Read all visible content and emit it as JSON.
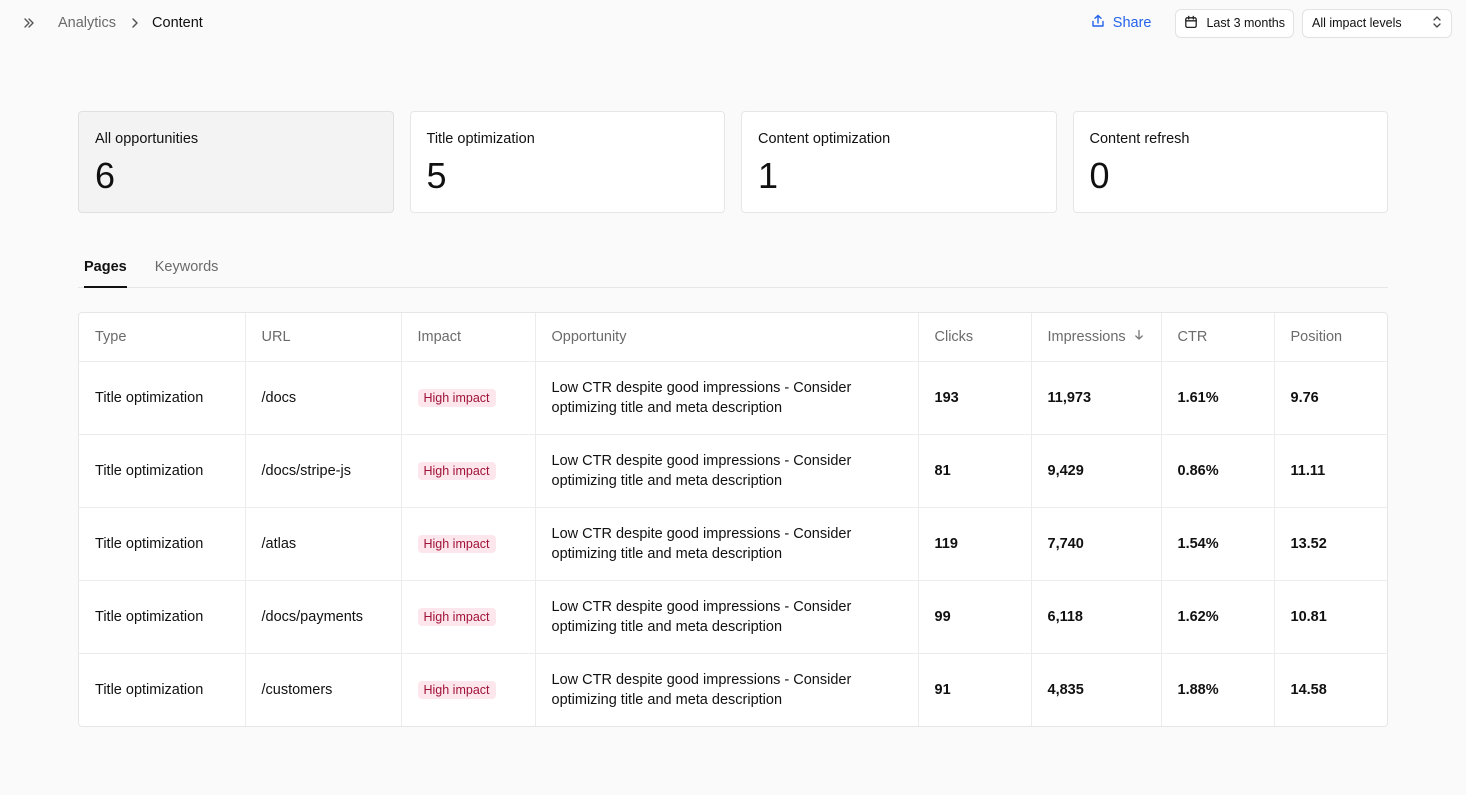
{
  "breadcrumb": {
    "parent": "Analytics",
    "current": "Content"
  },
  "toolbar": {
    "share_label": "Share",
    "date_range": "Last 3 months",
    "impact_filter": "All impact levels"
  },
  "cards": [
    {
      "label": "All opportunities",
      "value": "6"
    },
    {
      "label": "Title optimization",
      "value": "5"
    },
    {
      "label": "Content optimization",
      "value": "1"
    },
    {
      "label": "Content refresh",
      "value": "0"
    }
  ],
  "tabs": [
    {
      "label": "Pages"
    },
    {
      "label": "Keywords"
    }
  ],
  "table": {
    "columns": [
      "Type",
      "URL",
      "Impact",
      "Opportunity",
      "Clicks",
      "Impressions",
      "CTR",
      "Position"
    ],
    "rows": [
      {
        "type": "Title optimization",
        "url": "/docs",
        "impact": "High impact",
        "opportunity": "Low CTR despite good impressions - Consider optimizing title and meta description",
        "clicks": "193",
        "impressions": "11,973",
        "ctr": "1.61%",
        "position": "9.76"
      },
      {
        "type": "Title optimization",
        "url": "/docs/stripe-js",
        "impact": "High impact",
        "opportunity": "Low CTR despite good impressions - Consider optimizing title and meta description",
        "clicks": "81",
        "impressions": "9,429",
        "ctr": "0.86%",
        "position": "11.11"
      },
      {
        "type": "Title optimization",
        "url": "/atlas",
        "impact": "High impact",
        "opportunity": "Low CTR despite good impressions - Consider optimizing title and meta description",
        "clicks": "119",
        "impressions": "7,740",
        "ctr": "1.54%",
        "position": "13.52"
      },
      {
        "type": "Title optimization",
        "url": "/docs/payments",
        "impact": "High impact",
        "opportunity": "Low CTR despite good impressions - Consider optimizing title and meta description",
        "clicks": "99",
        "impressions": "6,118",
        "ctr": "1.62%",
        "position": "10.81"
      },
      {
        "type": "Title optimization",
        "url": "/customers",
        "impact": "High impact",
        "opportunity": "Low CTR despite good impressions - Consider optimizing title and meta description",
        "clicks": "91",
        "impressions": "4,835",
        "ctr": "1.88%",
        "position": "14.58"
      }
    ]
  },
  "colors": {
    "accent": "#2563eb",
    "badge_bg": "#fde7ec",
    "badge_text": "#9f1239"
  },
  "icons": {
    "sidebar_toggle": "chevrons-right-icon",
    "breadcrumb_separator": "chevron-right-icon",
    "share": "share-icon",
    "date": "calendar-icon",
    "select": "chevrons-up-down-icon",
    "sort": "arrow-down-icon"
  }
}
